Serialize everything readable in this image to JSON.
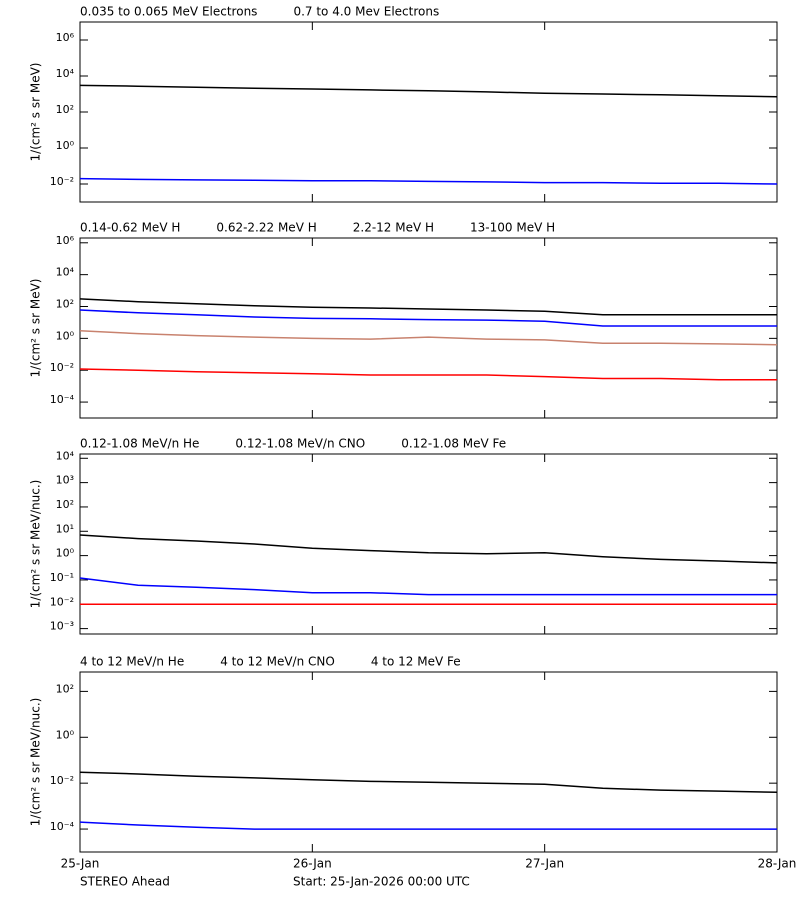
{
  "chart_data": [
    {
      "type": "line",
      "log_y": true,
      "ylabel": "1/(cm² s sr MeV)",
      "x": [
        0,
        0.25,
        0.5,
        0.75,
        1,
        1.25,
        1.5,
        1.75,
        2,
        2.25,
        2.5,
        2.75,
        3
      ],
      "xlim": [
        0,
        3
      ],
      "ylim": [
        0.001,
        10000000
      ],
      "yticks": [
        {
          "value": 0.01,
          "label": "10⁻²"
        },
        {
          "value": 1,
          "label": "10⁰"
        },
        {
          "value": 100,
          "label": "10²"
        },
        {
          "value": 10000,
          "label": "10⁴"
        },
        {
          "value": 1000000,
          "label": "10⁶"
        }
      ],
      "series": [
        {
          "name": "0.035 to 0.065 MeV Electrons",
          "color": "#000000",
          "values": [
            3000,
            2700,
            2400,
            2100,
            1900,
            1700,
            1500,
            1300,
            1100,
            1000,
            900,
            800,
            700
          ]
        },
        {
          "name": "0.7 to 4.0 Mev Electrons",
          "color": "#0000ff",
          "values": [
            0.02,
            0.018,
            0.017,
            0.016,
            0.015,
            0.015,
            0.014,
            0.013,
            0.012,
            0.012,
            0.011,
            0.011,
            0.01
          ]
        }
      ]
    },
    {
      "type": "line",
      "log_y": true,
      "ylabel": "1/(cm² s sr MeV)",
      "x": [
        0,
        0.25,
        0.5,
        0.75,
        1,
        1.25,
        1.5,
        1.75,
        2,
        2.25,
        2.5,
        2.75,
        3
      ],
      "xlim": [
        0,
        3
      ],
      "ylim": [
        1e-05,
        2000000
      ],
      "yticks": [
        {
          "value": 0.0001,
          "label": "10⁻⁴"
        },
        {
          "value": 0.01,
          "label": "10⁻²"
        },
        {
          "value": 1,
          "label": "10⁰"
        },
        {
          "value": 100,
          "label": "10²"
        },
        {
          "value": 10000,
          "label": "10⁴"
        },
        {
          "value": 1000000,
          "label": "10⁶"
        }
      ],
      "series": [
        {
          "name": "0.14-0.62 MeV H",
          "color": "#000000",
          "values": [
            300,
            200,
            150,
            110,
            90,
            80,
            70,
            60,
            50,
            30,
            30,
            30,
            30
          ]
        },
        {
          "name": "0.62-2.22 MeV H",
          "color": "#0000ff",
          "values": [
            60,
            40,
            30,
            22,
            18,
            17,
            15,
            14,
            12,
            6,
            6,
            6,
            6
          ]
        },
        {
          "name": "2.2-12 MeV H",
          "color": "#c8826e",
          "values": [
            3,
            2,
            1.5,
            1.2,
            1,
            0.9,
            1.2,
            0.9,
            0.8,
            0.5,
            0.5,
            0.45,
            0.4
          ]
        },
        {
          "name": "13-100 MeV H",
          "color": "#ff0000",
          "values": [
            0.012,
            0.01,
            0.008,
            0.007,
            0.006,
            0.005,
            0.005,
            0.005,
            0.004,
            0.003,
            0.003,
            0.0025,
            0.0025
          ]
        }
      ]
    },
    {
      "type": "line",
      "log_y": true,
      "ylabel": "1/(cm² s sr MeV/nuc.)",
      "x": [
        0,
        0.25,
        0.5,
        0.75,
        1,
        1.25,
        1.5,
        1.75,
        2,
        2.25,
        2.5,
        2.75,
        3
      ],
      "xlim": [
        0,
        3
      ],
      "ylim": [
        0.0006,
        15000
      ],
      "yticks": [
        {
          "value": 0.001,
          "label": "10⁻³"
        },
        {
          "value": 0.01,
          "label": "10⁻²"
        },
        {
          "value": 0.1,
          "label": "10⁻¹"
        },
        {
          "value": 1,
          "label": "10⁰"
        },
        {
          "value": 10,
          "label": "10¹"
        },
        {
          "value": 100,
          "label": "10²"
        },
        {
          "value": 1000,
          "label": "10³"
        },
        {
          "value": 10000,
          "label": "10⁴"
        }
      ],
      "series": [
        {
          "name": "0.12-1.08 MeV/n He",
          "color": "#000000",
          "values": [
            7,
            5,
            4,
            3,
            2,
            1.6,
            1.3,
            1.2,
            1.3,
            0.9,
            0.7,
            0.6,
            0.5
          ]
        },
        {
          "name": "0.12-1.08 MeV/n CNO",
          "color": "#0000ff",
          "values": [
            0.12,
            0.06,
            0.05,
            0.04,
            0.03,
            0.03,
            0.025,
            0.025,
            0.025,
            0.025,
            0.025,
            0.025,
            0.025
          ]
        },
        {
          "name": "0.12-1.08 MeV Fe",
          "color": "#ff0000",
          "values": [
            0.01,
            0.01,
            0.01,
            0.01,
            0.01,
            0.01,
            0.01,
            0.01,
            0.01,
            0.01,
            0.01,
            0.01,
            0.01
          ]
        }
      ]
    },
    {
      "type": "line",
      "log_y": true,
      "ylabel": "1/(cm² s sr MeV/nuc.)",
      "x": [
        0,
        0.25,
        0.5,
        0.75,
        1,
        1.25,
        1.5,
        1.75,
        2,
        2.25,
        2.5,
        2.75,
        3
      ],
      "xlim": [
        0,
        3
      ],
      "ylim": [
        1e-05,
        700
      ],
      "xticks": [
        {
          "value": 0,
          "label": "25-Jan"
        },
        {
          "value": 1,
          "label": "26-Jan"
        },
        {
          "value": 2,
          "label": "27-Jan"
        },
        {
          "value": 3,
          "label": "28-Jan"
        }
      ],
      "yticks": [
        {
          "value": 0.0001,
          "label": "10⁻⁴"
        },
        {
          "value": 0.01,
          "label": "10⁻²"
        },
        {
          "value": 1,
          "label": "10⁰"
        },
        {
          "value": 100,
          "label": "10²"
        }
      ],
      "series": [
        {
          "name": "4 to 12 MeV/n He",
          "color": "#000000",
          "values": [
            0.03,
            0.025,
            0.02,
            0.017,
            0.014,
            0.012,
            0.011,
            0.01,
            0.009,
            0.006,
            0.005,
            0.0045,
            0.004
          ]
        },
        {
          "name": "4 to 12 MeV/n CNO",
          "color": "#0000ff",
          "values": [
            0.0002,
            0.00015,
            0.00012,
            0.0001,
            0.0001,
            0.0001,
            0.0001,
            0.0001,
            0.0001,
            0.0001,
            0.0001,
            0.0001,
            0.0001
          ]
        },
        {
          "name": "4 to 12 MeV Fe",
          "color": "#ff0000",
          "values": [
            null,
            null,
            null,
            null,
            null,
            null,
            null,
            null,
            null,
            null,
            null,
            null,
            null
          ]
        }
      ]
    }
  ],
  "footer": {
    "spacecraft": "STEREO Ahead",
    "start": "Start: 25-Jan-2026 00:00 UTC"
  }
}
